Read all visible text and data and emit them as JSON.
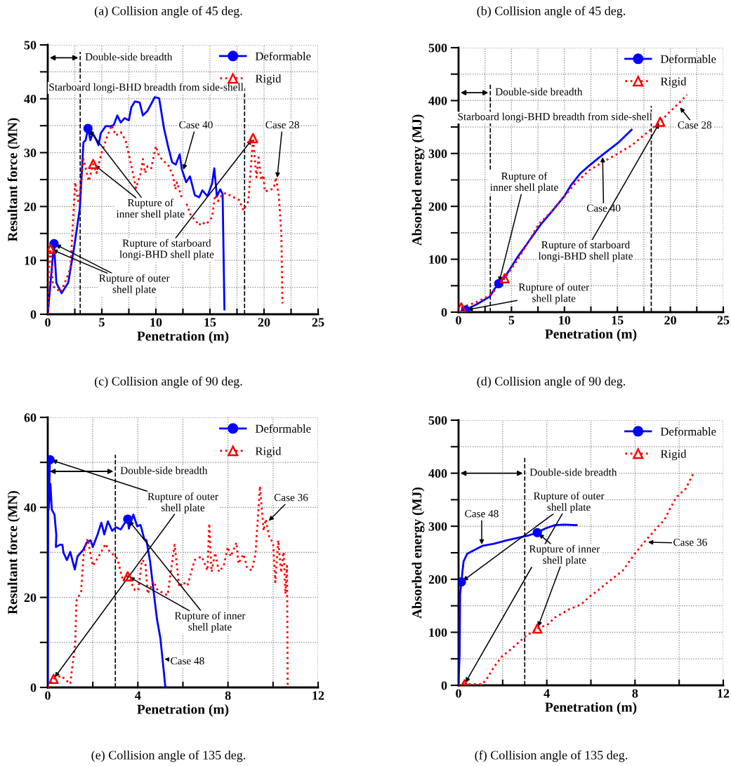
{
  "chart_data": [
    {
      "type": "line",
      "xlabel": "Penetration (m)",
      "ylabel": "Resultant force (MN)",
      "xlim": [
        0,
        25
      ],
      "xticks": [
        0,
        {
          "value": 2.5,
          "label": null
        },
        5,
        {
          "value": 7.5,
          "label": null
        },
        10,
        {
          "value": 12.5,
          "label": null
        },
        15,
        {
          "value": 17.5,
          "label": null
        },
        20,
        {
          "value": 22.5,
          "label": null
        },
        25
      ],
      "ylim": [
        0,
        50
      ],
      "yticks": [
        0,
        {
          "value": 5,
          "label": null
        },
        10,
        {
          "value": 15,
          "label": null
        },
        20,
        {
          "value": 25,
          "label": null
        },
        30,
        {
          "value": 35,
          "label": null
        },
        40,
        {
          "value": 45,
          "label": null
        },
        50
      ],
      "grid": true,
      "legend": "top right",
      "series": [
        {
          "color": "#0000ff",
          "line_style": "solid",
          "x": [
            0,
            0.58,
            0.8,
            1.28,
            1.9,
            2.5,
            2.97,
            3.3,
            3.5,
            3.72,
            3.94,
            4.16,
            4.5,
            4.7,
            4.9,
            5.35,
            5.8,
            6.1,
            6.43,
            6.75,
            7.1,
            7.5,
            7.73,
            8.06,
            8.5,
            8.8,
            9.24,
            9.9,
            10.3,
            10.75,
            11.1,
            11.5,
            11.84,
            12.2,
            12.4,
            12.8,
            13.15,
            13.6,
            14.0,
            14.3,
            14.77,
            15.2,
            15.4,
            15.64,
            15.95,
            16.17,
            16.34
          ],
          "values": [
            0,
            13.1,
            5.8,
            3.9,
            5.9,
            13.2,
            19.7,
            31.9,
            32.3,
            34.5,
            32.3,
            33.6,
            32.3,
            31.4,
            33.6,
            34.9,
            34.9,
            35.1,
            36.9,
            35.6,
            36.4,
            36.0,
            38.4,
            39.5,
            39.3,
            36.9,
            37.8,
            40.3,
            40.1,
            34.5,
            31.4,
            28.2,
            27.8,
            29.7,
            26.9,
            24.5,
            25.6,
            22.1,
            21.7,
            23.0,
            21.9,
            24.3,
            27.1,
            21.9,
            23.2,
            22.3,
            0.9
          ]
        },
        {
          "color": "#ff0000",
          "line_style": "dotted",
          "x": [
            0,
            0.15,
            0.26,
            0.48,
            1.23,
            2.1,
            2.53,
            2.86,
            3.3,
            3.8,
            4.2,
            4.5,
            5.0,
            5.45,
            5.9,
            6.3,
            6.75,
            7.2,
            7.6,
            8.16,
            8.6,
            8.8,
            9.0,
            9.24,
            9.57,
            10.0,
            10.3,
            10.75,
            11.2,
            11.6,
            11.8,
            11.95,
            12.4,
            12.9,
            13.25,
            13.6,
            14.0,
            14.22,
            14.65,
            15.2,
            15.47,
            15.74,
            16.17,
            16.5,
            17.0,
            17.7,
            18.1,
            18.55,
            18.98,
            19.3,
            19.5,
            19.74,
            19.95,
            20.06,
            20.5,
            20.9,
            21.1,
            21.37,
            21.6,
            21.7
          ],
          "values": [
            0,
            11.9,
            12.1,
            5.2,
            4.1,
            8.5,
            24.5,
            20.6,
            28.8,
            24.7,
            27.9,
            26.2,
            30.1,
            32.7,
            35.1,
            33.2,
            33.8,
            32.3,
            28.8,
            23.4,
            26.2,
            28.8,
            26.2,
            27.5,
            27.1,
            31.2,
            29.3,
            28.4,
            27.5,
            25.6,
            23.2,
            24.5,
            21.5,
            20.2,
            18.2,
            17.6,
            16.5,
            17.1,
            16.7,
            18.0,
            22.1,
            21.0,
            22.3,
            22.5,
            21.9,
            21.2,
            19.3,
            21.0,
            32.7,
            25.4,
            29.1,
            24.9,
            25.8,
            22.8,
            23.0,
            23.4,
            25.4,
            21.9,
            15.0,
            2.0
          ]
        },
        {
          "name": "Deformable",
          "type": "scatter",
          "color": "#0000ff",
          "marker": "circle",
          "x": [
            0.58,
            3.72
          ],
          "values": [
            13.1,
            34.5
          ]
        },
        {
          "name": "Rigid",
          "type": "scatter",
          "color": "#ff0000",
          "marker": "triangle",
          "x": [
            0.26,
            4.2,
            18.98
          ],
          "values": [
            12.1,
            27.9,
            32.7
          ]
        }
      ],
      "ref_lines": [
        {
          "axis": "x",
          "value": 3,
          "label": "Double-side breadth",
          "line_style": "dashed",
          "color": "#000000"
        },
        {
          "axis": "x",
          "value": 18.2,
          "label": "Starboard longi-BHD breadth from side-shell",
          "line_style": "dashed",
          "color": "#000000"
        }
      ],
      "annotations": [
        "(a) Collision angle of 45 deg.",
        "(c) Collision angle of 90 deg.",
        {
          "text": "Case 40",
          "x": 12.5,
          "y": 26.5
        },
        {
          "text": "Case 28",
          "x": 21.2,
          "y": 25
        },
        {
          "text": "Rupture of\ninner shell plate",
          "x": 3.72,
          "y": 34.5
        },
        {
          "text": "Rupture of outer\nshell plate",
          "x": 0.58,
          "y": 13.1
        },
        {
          "text": "Rupture of starboard\nlongi-BHD shell plate",
          "x": 18.98,
          "y": 32.7
        }
      ]
    },
    {
      "type": "line",
      "xlabel": "Penetration (m)",
      "ylabel": "Absorbed energy (MJ)",
      "xlim": [
        0,
        25
      ],
      "xticks": [
        0,
        {
          "value": 2.5,
          "label": null
        },
        5,
        {
          "value": 7.5,
          "label": null
        },
        10,
        {
          "value": 12.5,
          "label": null
        },
        15,
        {
          "value": 17.5,
          "label": null
        },
        20,
        {
          "value": 22.5,
          "label": null
        },
        25
      ],
      "ylim": [
        0,
        500
      ],
      "yticks": [
        0,
        {
          "value": 50,
          "label": null
        },
        100,
        {
          "value": 150,
          "label": null
        },
        200,
        {
          "value": 250,
          "label": null
        },
        300,
        {
          "value": 350,
          "label": null
        },
        400,
        {
          "value": 450,
          "label": null
        },
        500
      ],
      "grid": true,
      "legend": "top right",
      "series": [
        {
          "color": "#0000ff",
          "line_style": "solid",
          "x": [
            0.66,
            1.81,
            2.92,
            3.47,
            3.8,
            4.46,
            5.57,
            6.67,
            7.77,
            8.88,
            9.98,
            10.65,
            11.53,
            12.4,
            13.5,
            15.06,
            16.34
          ],
          "values": [
            4,
            16,
            29,
            46,
            54,
            69,
            104,
            135,
            166,
            192,
            219,
            241,
            263,
            278,
            296,
            320,
            345
          ]
        },
        {
          "color": "#ff0000",
          "line_style": "dotted",
          "x": [
            0.26,
            1.59,
            2.69,
            3.58,
            4.35,
            5.57,
            6.67,
            7.55,
            8.88,
            9.98,
            11.09,
            12.4,
            13.74,
            15.06,
            16.39,
            17.71,
            19.04,
            19.9,
            20.8,
            21.58
          ],
          "values": [
            9,
            18,
            29,
            44,
            64,
            99,
            135,
            166,
            192,
            219,
            245,
            269,
            285,
            300,
            316,
            338,
            360,
            378,
            395,
            411
          ]
        },
        {
          "name": "Deformable",
          "type": "scatter",
          "color": "#0000ff",
          "marker": "circle",
          "x": [
            0.66,
            3.8
          ],
          "values": [
            4,
            54
          ]
        },
        {
          "name": "Rigid",
          "type": "scatter",
          "color": "#ff0000",
          "marker": "triangle",
          "x": [
            0.26,
            4.35,
            19.04
          ],
          "values": [
            9,
            64,
            360
          ]
        }
      ],
      "ref_lines": [
        {
          "axis": "x",
          "value": 3,
          "label": "Double-side breadth",
          "line_style": "dashed",
          "color": "#000000"
        },
        {
          "axis": "x",
          "value": 18.2,
          "label": "Starboard longi-BHD breadth from side-shell",
          "line_style": "dashed",
          "color": "#000000"
        }
      ],
      "annotations": [
        "(b) Collision angle of 45 deg.",
        "(d) Collision angle of 90 deg.",
        {
          "text": "Case 40",
          "x": 13.6,
          "y": 297
        },
        {
          "text": "Case 28",
          "x": 20.8,
          "y": 390
        },
        {
          "text": "Rupture of\ninner shell plate",
          "x": 3.8,
          "y": 54
        },
        {
          "text": "Rupture of outer\nshell plate",
          "x": 0.66,
          "y": 4
        },
        {
          "text": "Rupture of starboard\nlongi-BHD shell plate",
          "x": 19.04,
          "y": 360
        }
      ]
    },
    {
      "type": "line",
      "xlabel": "Penetration (m)",
      "ylabel": "Resultant force (MN)",
      "xlim": [
        0,
        12
      ],
      "xticks": [
        0,
        {
          "value": 2,
          "label": null
        },
        4,
        {
          "value": 6,
          "label": null
        },
        8,
        {
          "value": 10,
          "label": null
        },
        12
      ],
      "ylim": [
        0,
        60
      ],
      "yticks": [
        0,
        {
          "value": 10,
          "label": null
        },
        20,
        {
          "value": 30,
          "label": null
        },
        40,
        {
          "value": 50,
          "label": null
        },
        60
      ],
      "grid": true,
      "legend": "top right",
      "series": [
        {
          "color": "#0000ff",
          "line_style": "solid",
          "x": [
            0,
            0.02,
            0.1,
            0.04,
            0.12,
            0.18,
            0.3,
            0.38,
            0.36,
            0.54,
            0.65,
            0.7,
            0.85,
            1.0,
            1.2,
            1.32,
            1.58,
            1.73,
            1.9,
            2.0,
            2.2,
            2.38,
            2.51,
            2.67,
            2.86,
            3.03,
            3.24,
            3.4,
            3.55,
            3.6,
            3.8,
            3.97,
            4.12,
            4.28,
            4.38,
            4.54,
            4.7,
            4.85,
            5.0,
            5.16,
            5.22,
            5.32
          ],
          "values": [
            0,
            49.9,
            50.6,
            39.5,
            45.2,
            39.5,
            38.4,
            33.8,
            31.2,
            31.7,
            31.7,
            29.9,
            28.3,
            30.1,
            26.2,
            29.1,
            30.6,
            32.2,
            32.7,
            31.2,
            33.8,
            36.6,
            34.0,
            36.9,
            34.8,
            35.6,
            35.1,
            36.4,
            37.4,
            35.3,
            38.4,
            35.8,
            36.1,
            33.0,
            32.7,
            28.1,
            21.3,
            15.1,
            10.9,
            3.1,
            0,
            0
          ]
        },
        {
          "color": "#ff0000",
          "line_style": "dotted",
          "x": [
            0,
            0.26,
            0.59,
            1.0,
            1.22,
            1.27,
            1.48,
            1.6,
            1.77,
            2.0,
            2.26,
            2.57,
            2.72,
            3.09,
            3.3,
            3.55,
            3.87,
            4.02,
            4.18,
            4.33,
            4.44,
            4.7,
            4.85,
            5.16,
            5.32,
            5.63,
            5.84,
            6.0,
            6.2,
            6.52,
            6.83,
            7.09,
            7.17,
            7.27,
            7.43,
            7.6,
            7.81,
            7.99,
            8.12,
            8.38,
            8.46,
            8.69,
            8.85,
            9.06,
            9.22,
            9.42,
            9.58,
            9.68,
            9.84,
            10.0,
            10.1,
            10.23,
            10.36,
            10.47,
            10.55,
            10.62,
            10.65
          ],
          "values": [
            0,
            1.9,
            2.6,
            0.8,
            9.9,
            19.2,
            21.3,
            30.1,
            33.0,
            27.0,
            29.1,
            31.9,
            30.4,
            28.6,
            24.4,
            24.7,
            21.6,
            21.6,
            28.3,
            27.8,
            20.8,
            23.6,
            21.8,
            20.8,
            20.5,
            31.7,
            22.3,
            23.4,
            22.6,
            28.3,
            29.1,
            26.0,
            36.4,
            25.7,
            29.9,
            25.7,
            27.0,
            31.2,
            29.1,
            32.2,
            27.5,
            29.6,
            26.5,
            26.0,
            29.6,
            44.7,
            34.8,
            37.4,
            33.2,
            32.2,
            23.4,
            32.7,
            25.5,
            30.1,
            20.8,
            27.0,
            0
          ]
        },
        {
          "name": "Deformable",
          "type": "scatter",
          "color": "#0000ff",
          "marker": "circle",
          "x": [
            0.1,
            3.55
          ],
          "values": [
            50.6,
            37.4
          ]
        },
        {
          "name": "Rigid",
          "type": "scatter",
          "color": "#ff0000",
          "marker": "triangle",
          "x": [
            0.26,
            3.55
          ],
          "values": [
            1.9,
            24.7
          ]
        }
      ],
      "ref_lines": [
        {
          "axis": "x",
          "value": 3,
          "label": "Double-side breadth",
          "line_style": "dashed",
          "color": "#000000"
        }
      ],
      "annotations": [
        "(e) Collision angle of 135 deg.",
        {
          "text": "Rupture of outer\nshell plate",
          "x": 0.1,
          "y": 50.6
        },
        {
          "text": "Rupture of inner\nshell plate",
          "x": 3.55,
          "y": 37.4
        },
        {
          "text": "Case 36",
          "x": 9.75,
          "y": 36.7
        },
        {
          "text": "Case 48",
          "x": 5.1,
          "y": 6.4
        }
      ]
    },
    {
      "type": "line",
      "xlabel": "Penetration (m)",
      "ylabel": "Absorbed energy (MJ)",
      "xlim": [
        0,
        12
      ],
      "xticks": [
        0,
        {
          "value": 2,
          "label": null
        },
        4,
        {
          "value": 6,
          "label": null
        },
        8,
        {
          "value": 10,
          "label": null
        },
        12
      ],
      "ylim": [
        0,
        500
      ],
      "yticks": [
        0,
        {
          "value": 50,
          "label": null
        },
        100,
        {
          "value": 150,
          "label": null
        },
        200,
        {
          "value": 250,
          "label": null
        },
        300,
        {
          "value": 350,
          "label": null
        },
        400,
        {
          "value": 450,
          "label": null
        },
        500
      ],
      "grid": true,
      "legend": "top right",
      "series": [
        {
          "color": "#0000ff",
          "line_style": "solid",
          "x": [
            0,
            0.05,
            0.07,
            0.13,
            0.18,
            0.23,
            0.39,
            0.66,
            1.08,
            1.61,
            2.14,
            2.67,
            3.2,
            3.57,
            3.94,
            4.37,
            4.79,
            5.35
          ],
          "values": [
            0,
            62,
            172,
            195,
            216,
            234,
            248,
            254,
            263,
            267,
            273,
            278,
            283,
            288,
            296,
            302,
            303,
            302
          ]
        },
        {
          "color": "#ff0000",
          "line_style": "dotted",
          "x": [
            0,
            0.27,
            1.08,
            1.29,
            1.61,
            1.98,
            2.46,
            2.99,
            3.57,
            4.05,
            4.37,
            5.0,
            5.53,
            5.96,
            6.38,
            6.91,
            7.44,
            7.97,
            8.5,
            8.93,
            9.35,
            9.56,
            9.88,
            10.3,
            10.67
          ],
          "values": [
            0,
            2,
            2,
            13,
            35,
            55,
            71,
            91,
            107,
            115,
            128,
            143,
            152,
            168,
            181,
            199,
            216,
            247,
            274,
            294,
            313,
            331,
            355,
            371,
            402
          ]
        },
        {
          "name": "Deformable",
          "type": "scatter",
          "color": "#0000ff",
          "marker": "circle",
          "x": [
            0.13,
            3.57
          ],
          "values": [
            195,
            288
          ]
        },
        {
          "name": "Rigid",
          "type": "scatter",
          "color": "#ff0000",
          "marker": "triangle",
          "x": [
            0.27,
            3.57
          ],
          "values": [
            2,
            107
          ]
        }
      ],
      "ref_lines": [
        {
          "axis": "x",
          "value": 3,
          "label": "Double-side breadth",
          "line_style": "dashed",
          "color": "#000000"
        }
      ],
      "annotations": [
        "(f) Collision angle of 135 deg.",
        {
          "text": "Rupture of outer\nshell plate",
          "x": 0.13,
          "y": 195
        },
        {
          "text": "Rupture of inner\nshell plate",
          "x": 3.57,
          "y": 288
        },
        {
          "text": "Case 48",
          "x": 1.05,
          "y": 262
        },
        {
          "text": "Case 36",
          "x": 8.5,
          "y": 270
        }
      ]
    }
  ]
}
